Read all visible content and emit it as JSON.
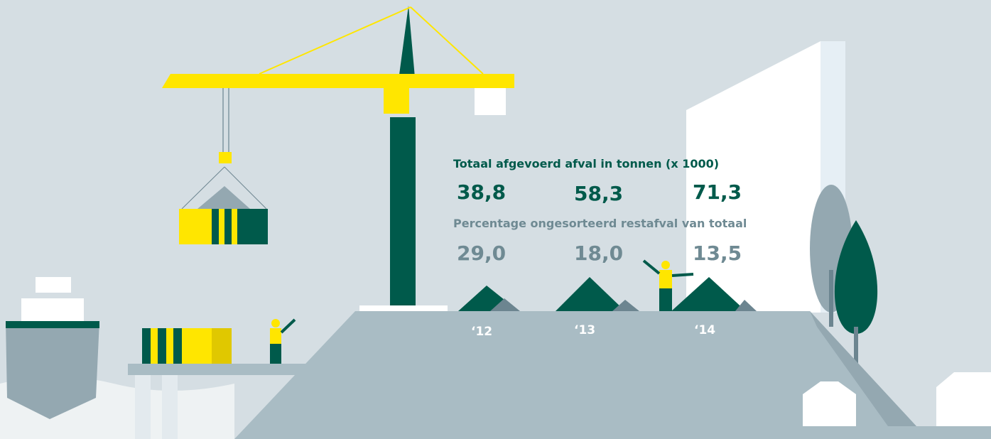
{
  "infographic": {
    "total_title": "Totaal afgevoerd afval in tonnen (x 1000)",
    "totals": [
      "38,8",
      "58,3",
      "71,3"
    ],
    "percentage_title": "Percentage ongesorteerd restafval van totaal",
    "percentages": [
      "29,0",
      "18,0",
      "13,5"
    ],
    "years": [
      "‘12",
      "‘13",
      "‘14"
    ]
  }
}
